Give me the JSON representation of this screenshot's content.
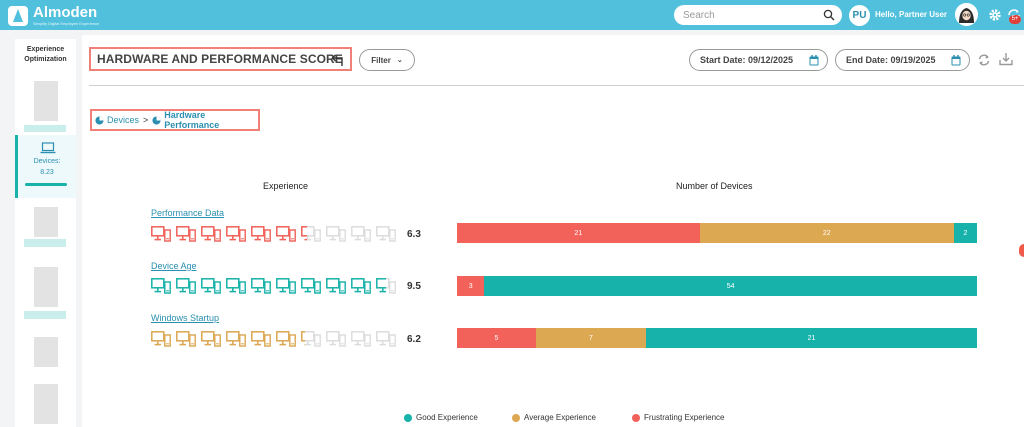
{
  "app": {
    "name": "Almoden",
    "tagline": "Simplify Digital Employee Experience"
  },
  "search": {
    "placeholder": "Search"
  },
  "user": {
    "initials": "PU",
    "greeting": "Hello, Partner User"
  },
  "notifications": {
    "count": "5+"
  },
  "sidebar": {
    "title": "Experience Optimization",
    "active_item": {
      "label": "Devices:",
      "value": "8.23"
    }
  },
  "header": {
    "title": "HARDWARE AND PERFORMANCE SCORE",
    "filter_label": "Filter",
    "start_date": "Start Date: 09/12/2025",
    "end_date": "End Date: 09/19/2025"
  },
  "breadcrumb": {
    "parent": "Devices",
    "separator": ">",
    "current": "Hardware Performance"
  },
  "columns": {
    "experience": "Experience",
    "devices": "Number of Devices"
  },
  "colors": {
    "good": "#17b3aa",
    "average": "#dca852",
    "frustrating": "#f2625a",
    "inactive": "#dcdcdc",
    "accent": "#2a8fb0"
  },
  "metrics": [
    {
      "name": "Performance Data",
      "score": "6.3",
      "icon_count": 10,
      "filled_icons": 6.3,
      "icon_color": "frustrating",
      "segments": [
        {
          "type": "frustrating",
          "value": 21
        },
        {
          "type": "average",
          "value": 22
        },
        {
          "type": "good",
          "value": 2
        }
      ]
    },
    {
      "name": "Device Age",
      "score": "9.5",
      "icon_count": 10,
      "filled_icons": 9.5,
      "icon_color": "good",
      "segments": [
        {
          "type": "frustrating",
          "value": 3
        },
        {
          "type": "good",
          "value": 54
        }
      ]
    },
    {
      "name": "Windows Startup",
      "score": "6.2",
      "icon_count": 10,
      "filled_icons": 6.2,
      "icon_color": "average",
      "segments": [
        {
          "type": "frustrating",
          "value": 5
        },
        {
          "type": "average",
          "value": 7
        },
        {
          "type": "good",
          "value": 21
        }
      ]
    }
  ],
  "legend": {
    "good": "Good Experience",
    "average": "Average Experience",
    "frustrating": "Frustrating Experience"
  }
}
